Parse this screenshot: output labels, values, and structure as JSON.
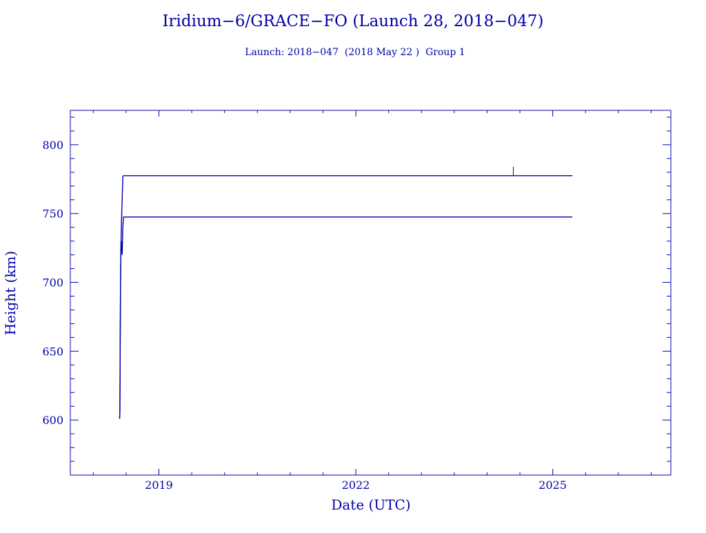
{
  "chart_data": {
    "type": "line",
    "title": "Iridium−6/GRACE−FO (Launch 28, 2018−047)",
    "subtitle": "Launch: 2018−047  (2018 May 22 )  Group 1",
    "xlabel": "Date (UTC)",
    "ylabel": "Height (km)",
    "xlim": [
      2017.65,
      2026.8
    ],
    "ylim": [
      560,
      825
    ],
    "x_ticks": [
      2019,
      2022,
      2025
    ],
    "x_tick_labels": [
      "2019",
      "2022",
      "2025"
    ],
    "y_ticks": [
      600,
      650,
      700,
      750,
      800
    ],
    "y_tick_labels": [
      "600",
      "650",
      "700",
      "750",
      "800"
    ],
    "grid": false,
    "legend": "none",
    "color": "#0000aa",
    "series": [
      {
        "x": [
          2018.4,
          2018.405,
          2018.41,
          2018.415,
          2018.42,
          2018.43,
          2018.44,
          2018.45,
          2018.46,
          2018.47,
          2018.5,
          2019.0,
          2020.0,
          2021.0,
          2022.0,
          2023.0,
          2024.0,
          2024.5,
          2025.3
        ],
        "y": [
          601,
          605,
          650,
          700,
          725,
          745,
          760,
          777,
          777.5,
          777.5,
          777.5,
          777.5,
          777.5,
          777.5,
          777.5,
          777.5,
          777.5,
          777.5,
          777.5
        ]
      },
      {
        "x": [
          2018.4,
          2018.405,
          2018.41,
          2018.415,
          2018.42,
          2018.43,
          2018.44,
          2018.45,
          2018.46,
          2018.47,
          2018.5,
          2019.0,
          2020.0,
          2021.0,
          2022.0,
          2023.0,
          2024.0,
          2024.5,
          2025.3
        ],
        "y": [
          601,
          605,
          662,
          700,
          720,
          730,
          720,
          740,
          747.5,
          747.5,
          747.5,
          747.5,
          747.5,
          747.5,
          747.5,
          747.5,
          747.5,
          747.5,
          747.5
        ]
      }
    ],
    "annotations": [
      {
        "type": "spike",
        "x": 2024.4,
        "y_from": 777.5,
        "y_to": 784
      }
    ]
  }
}
